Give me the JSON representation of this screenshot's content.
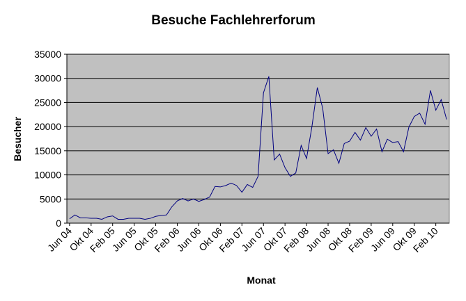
{
  "chart_data": {
    "type": "line",
    "title": "Besuche Fachlehrerforum",
    "x_label": "Monat",
    "y_label": "Besucher",
    "categories": [
      "Jun 04",
      null,
      null,
      null,
      "Okt 04",
      null,
      null,
      null,
      "Feb 05",
      null,
      null,
      null,
      "Jun 05",
      null,
      null,
      null,
      "Okt 05",
      null,
      null,
      null,
      "Feb 06",
      null,
      null,
      null,
      "Jun 06",
      null,
      null,
      null,
      "Okt 06",
      null,
      null,
      null,
      "Feb 07",
      null,
      null,
      null,
      "Jun 07",
      null,
      null,
      null,
      "Okt 07",
      null,
      null,
      null,
      "Feb 08",
      null,
      null,
      null,
      "Jun 08",
      null,
      null,
      null,
      "Okt 08",
      null,
      null,
      null,
      "Feb 09",
      null,
      null,
      null,
      "Jun 09",
      null,
      null,
      null,
      "Okt 09",
      null,
      null,
      null,
      "Feb 10",
      null,
      null
    ],
    "series": [
      {
        "name": "Besucher",
        "color": "#000080",
        "values": [
          900,
          1700,
          1100,
          1100,
          1000,
          1000,
          800,
          1300,
          1500,
          800,
          800,
          1000,
          1000,
          1000,
          800,
          1000,
          1400,
          1600,
          1700,
          3400,
          4600,
          5100,
          4600,
          5000,
          4500,
          4900,
          5400,
          7600,
          7500,
          7800,
          8300,
          7800,
          6400,
          8000,
          7400,
          9700,
          27000,
          30400,
          13100,
          14300,
          11500,
          9700,
          10400,
          16100,
          13400,
          20000,
          28100,
          23800,
          14400,
          15200,
          12400,
          16500,
          17000,
          18800,
          17200,
          19800,
          18000,
          19500,
          14800,
          17400,
          16700,
          16900,
          14800,
          19900,
          22100,
          22800,
          20500,
          27500,
          23400,
          25600,
          21500
        ]
      }
    ],
    "ylim": [
      0,
      35000
    ],
    "yticks": [
      0,
      5000,
      10000,
      15000,
      20000,
      25000,
      30000,
      35000
    ],
    "grid": true,
    "plot_background": "#c0c0c0"
  }
}
